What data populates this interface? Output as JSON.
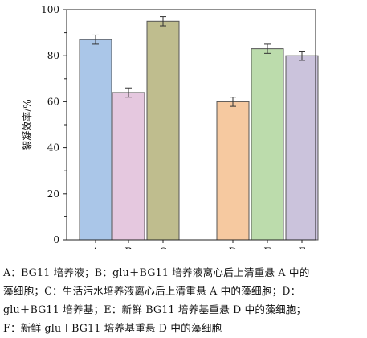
{
  "chart_data": {
    "type": "bar",
    "categories": [
      "A",
      "B",
      "C",
      "D",
      "E",
      "F"
    ],
    "values": [
      87,
      64,
      95,
      60,
      83,
      80
    ],
    "errors": [
      2,
      2,
      2,
      2,
      2,
      2
    ],
    "ylabel": "絮凝效率/%",
    "ylim": [
      0,
      100
    ],
    "yticks": [
      0,
      20,
      40,
      60,
      80,
      100
    ],
    "grid": false,
    "legend": "none",
    "colors": [
      "#aac6e8",
      "#e5c8df",
      "#bfbd8e",
      "#f6c9a0",
      "#bcdcac",
      "#cbc3dc"
    ],
    "edge_color": "#555555"
  },
  "caption": {
    "lines": [
      "A：BG11 培养液；B：glu＋BG11 培养液离心后上清重悬 A 中的",
      "藻细胞；C：生活污水培养液离心后上清重悬 A 中的藻细胞；D：",
      "glu＋BG11 培养基；E：新鲜 BG11 培养基重悬 D 中的藻细胞；",
      "F：新鲜 glu＋BG11 培养基重悬 D 中的藻细胞"
    ]
  }
}
